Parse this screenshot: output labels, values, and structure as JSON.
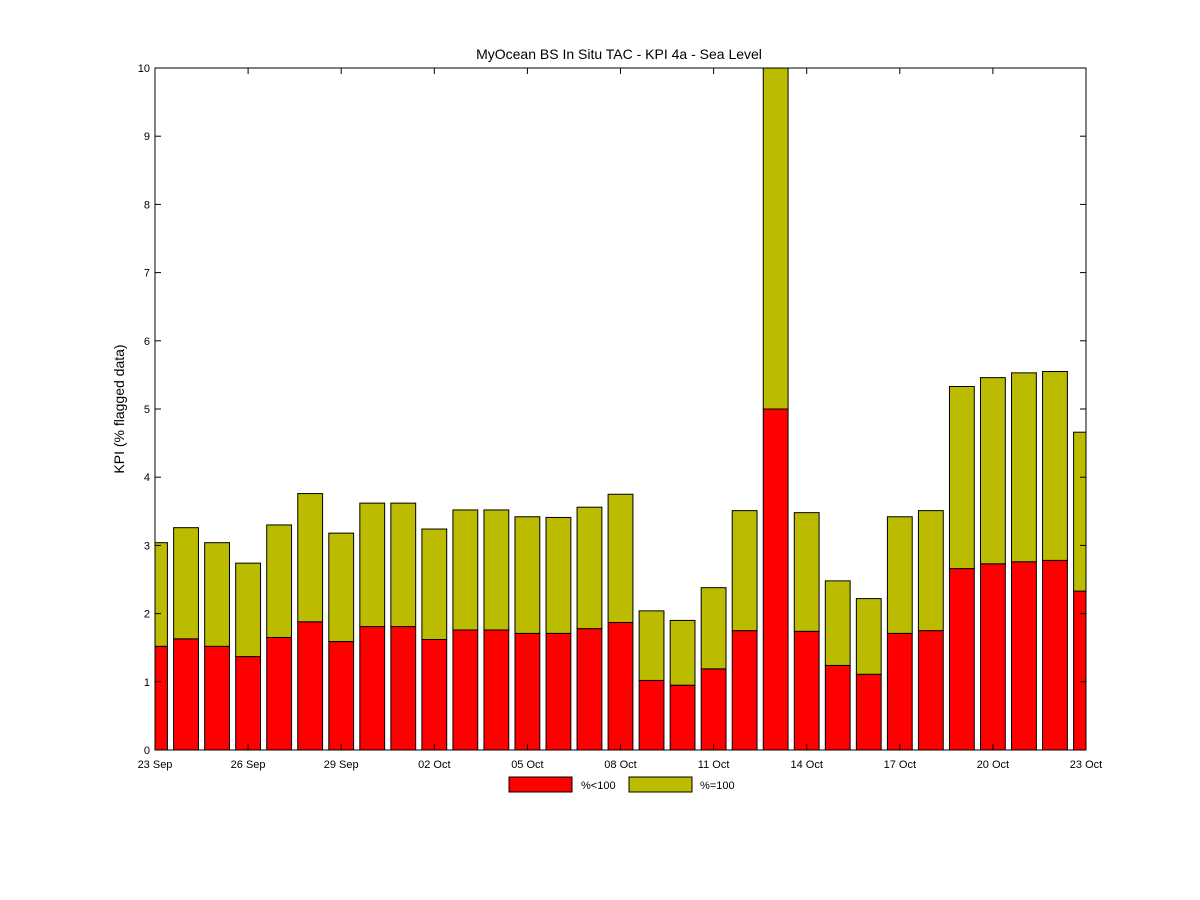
{
  "chart_data": {
    "type": "bar",
    "stacked": true,
    "title": "MyOcean  BS In Situ TAC - KPI 4a - Sea Level",
    "xlabel": "",
    "ylabel": "KPI (% flagged data)",
    "ylim": [
      0,
      10
    ],
    "yticks": [
      0,
      1,
      2,
      3,
      4,
      5,
      6,
      7,
      8,
      9,
      10
    ],
    "x_start": "2013-09-23",
    "x_end": "2013-10-23",
    "xtick_labels": [
      "23 Sep",
      "26 Sep",
      "29 Sep",
      "02 Oct",
      "05 Oct",
      "08 Oct",
      "11 Oct",
      "14 Oct",
      "17 Oct",
      "20 Oct",
      "23 Oct"
    ],
    "xtick_dates": [
      "2013-09-23",
      "2013-09-26",
      "2013-09-29",
      "2013-10-02",
      "2013-10-05",
      "2013-10-08",
      "2013-10-11",
      "2013-10-14",
      "2013-10-17",
      "2013-10-20",
      "2013-10-23"
    ],
    "x": [
      "2013-09-23",
      "2013-09-24",
      "2013-09-25",
      "2013-09-26",
      "2013-09-27",
      "2013-09-28",
      "2013-09-29",
      "2013-09-30",
      "2013-10-01",
      "2013-10-02",
      "2013-10-03",
      "2013-10-04",
      "2013-10-05",
      "2013-10-06",
      "2013-10-07",
      "2013-10-08",
      "2013-10-09",
      "2013-10-10",
      "2013-10-11",
      "2013-10-12",
      "2013-10-13",
      "2013-10-14",
      "2013-10-15",
      "2013-10-16",
      "2013-10-17",
      "2013-10-18",
      "2013-10-19",
      "2013-10-20",
      "2013-10-21",
      "2013-10-22",
      "2013-10-23"
    ],
    "series": [
      {
        "name": "%<100",
        "color": "#ff0000",
        "values": [
          1.52,
          1.63,
          1.52,
          1.37,
          1.65,
          1.88,
          1.59,
          1.81,
          1.81,
          1.62,
          1.76,
          1.76,
          1.71,
          1.71,
          1.78,
          1.87,
          1.02,
          0.95,
          1.19,
          1.75,
          5.0,
          1.74,
          1.24,
          1.11,
          1.71,
          1.75,
          2.66,
          2.73,
          2.76,
          2.78,
          2.33
        ]
      },
      {
        "name": "%=100",
        "color": "#bbbb00",
        "values": [
          1.52,
          1.63,
          1.52,
          1.37,
          1.65,
          1.88,
          1.59,
          1.81,
          1.81,
          1.62,
          1.76,
          1.76,
          1.71,
          1.7,
          1.78,
          1.88,
          1.02,
          0.95,
          1.19,
          1.76,
          5.0,
          1.74,
          1.24,
          1.11,
          1.71,
          1.76,
          2.67,
          2.73,
          2.77,
          2.77,
          2.33
        ]
      }
    ],
    "legend_position": "bottom-center",
    "grid": false
  }
}
